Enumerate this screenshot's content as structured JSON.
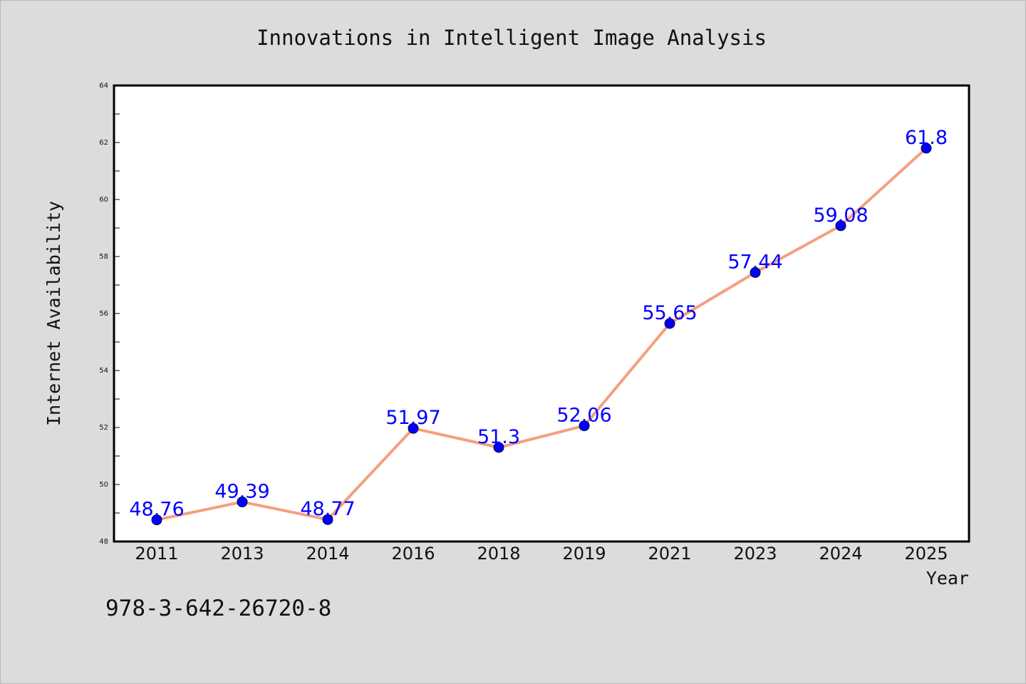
{
  "colors": {
    "background": "#dcdcdc",
    "plot_background": "#ffffff",
    "line": "#f4a07f",
    "marker": "#0000ff",
    "data_label": "#0000ff"
  },
  "chart_data": {
    "type": "line",
    "title": "Innovations in Intelligent Image Analysis",
    "xlabel": "Year",
    "ylabel": "Internet Availability",
    "categories": [
      "2011",
      "2013",
      "2014",
      "2016",
      "2018",
      "2019",
      "2021",
      "2023",
      "2024",
      "2025"
    ],
    "series": [
      {
        "values": [
          48.76,
          49.39,
          48.77,
          51.97,
          51.3,
          52.06,
          55.65,
          57.44,
          59.08,
          61.8
        ],
        "labels": [
          "48.76",
          "49.39",
          "48.77",
          "51.97",
          "51.3",
          "52.06",
          "55.65",
          "57.44",
          "59.08",
          "61.8"
        ]
      }
    ],
    "ylim": [
      48,
      64
    ],
    "yticks": [
      48,
      50,
      52,
      54,
      56,
      58,
      60,
      62,
      64
    ],
    "ytick_labels": [
      "48",
      "50",
      "52",
      "54",
      "56",
      "58",
      "60",
      "62",
      "64"
    ],
    "grid": false,
    "legend": "none"
  },
  "annotation": {
    "text": "978-3-642-26720-8"
  }
}
